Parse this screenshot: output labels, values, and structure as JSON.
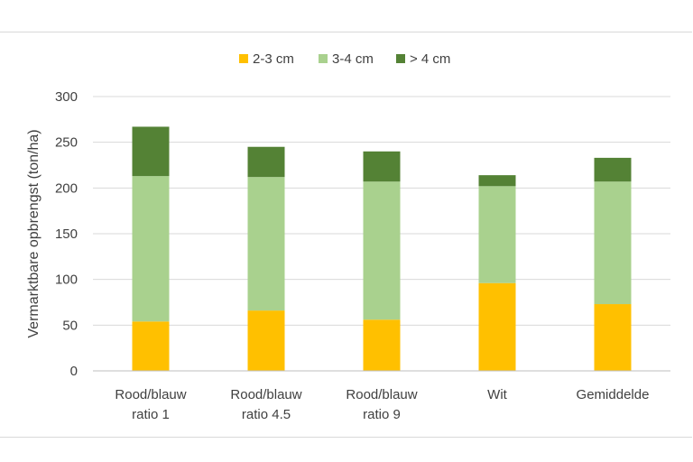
{
  "chart_data": {
    "type": "bar",
    "stacked": true,
    "title": "",
    "ylabel": "Vermarktbare opbrengst (ton/ha)",
    "xlabel": "",
    "categories": [
      [
        "Rood/blauw",
        "ratio 1"
      ],
      [
        "Rood/blauw",
        "ratio 4.5"
      ],
      [
        "Rood/blauw",
        "ratio 9"
      ],
      [
        "Wit"
      ],
      [
        "Gemiddelde"
      ]
    ],
    "series": [
      {
        "name": "2-3 cm",
        "color": "#ffc000",
        "values": [
          54,
          66,
          56,
          96,
          73
        ]
      },
      {
        "name": "3-4 cm",
        "color": "#a9d18e",
        "values": [
          159,
          146,
          151,
          106,
          134
        ]
      },
      {
        "name": "> 4 cm",
        "color": "#548235",
        "values": [
          54,
          33,
          33,
          12,
          26
        ]
      }
    ],
    "ylim": [
      0,
      300
    ],
    "yticks": [
      0,
      50,
      100,
      150,
      200,
      250,
      300
    ],
    "grid": true,
    "legend_position": "top"
  }
}
